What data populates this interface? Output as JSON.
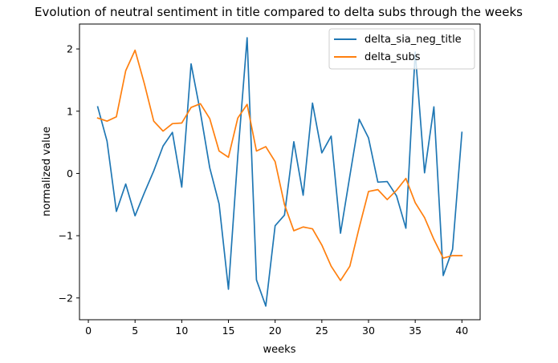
{
  "chart_data": {
    "type": "line",
    "title": "Evolution of neutral sentiment in title compared to delta subs through the weeks",
    "xlabel": "weeks",
    "ylabel": "normalized value",
    "xlim": [
      -0.95,
      41.95
    ],
    "ylim": [
      -2.35,
      2.4
    ],
    "xticks": [
      0,
      5,
      10,
      15,
      20,
      25,
      30,
      35,
      40
    ],
    "xtick_labels": [
      "0",
      "5",
      "10",
      "15",
      "20",
      "25",
      "30",
      "35",
      "40"
    ],
    "yticks": [
      -2,
      -1,
      0,
      1,
      2
    ],
    "ytick_labels": [
      "−2",
      "−1",
      "0",
      "1",
      "2"
    ],
    "grid": false,
    "legend_position": "top-right",
    "x": [
      1,
      2,
      3,
      4,
      5,
      6,
      7,
      8,
      9,
      10,
      11,
      12,
      13,
      14,
      15,
      16,
      17,
      18,
      19,
      20,
      21,
      22,
      23,
      24,
      25,
      26,
      27,
      28,
      29,
      30,
      31,
      32,
      33,
      34,
      35,
      36,
      37,
      38,
      39,
      40
    ],
    "series": [
      {
        "name": "delta_sia_neg_title",
        "color": "#1f77b4",
        "values": [
          1.07,
          0.52,
          -0.61,
          -0.17,
          -0.68,
          -0.31,
          0.04,
          0.44,
          0.66,
          -0.22,
          1.76,
          0.98,
          0.09,
          -0.49,
          -1.86,
          0.28,
          2.18,
          -1.71,
          -2.13,
          -0.84,
          -0.67,
          0.51,
          -0.35,
          1.13,
          0.33,
          0.6,
          -0.96,
          -0.04,
          0.87,
          0.57,
          -0.14,
          -0.13,
          -0.36,
          -0.88,
          1.95,
          0.01,
          1.07,
          -1.64,
          -1.22,
          0.66
        ]
      },
      {
        "name": "delta_subs",
        "color": "#ff7f0e",
        "values": [
          0.89,
          0.84,
          0.91,
          1.65,
          1.98,
          1.44,
          0.84,
          0.68,
          0.8,
          0.81,
          1.06,
          1.12,
          0.88,
          0.36,
          0.26,
          0.89,
          1.11,
          0.36,
          0.43,
          0.19,
          -0.5,
          -0.92,
          -0.86,
          -0.89,
          -1.15,
          -1.49,
          -1.72,
          -1.49,
          -0.87,
          -0.29,
          -0.26,
          -0.42,
          -0.27,
          -0.08,
          -0.47,
          -0.71,
          -1.06,
          -1.36,
          -1.32,
          -1.32
        ]
      }
    ]
  }
}
